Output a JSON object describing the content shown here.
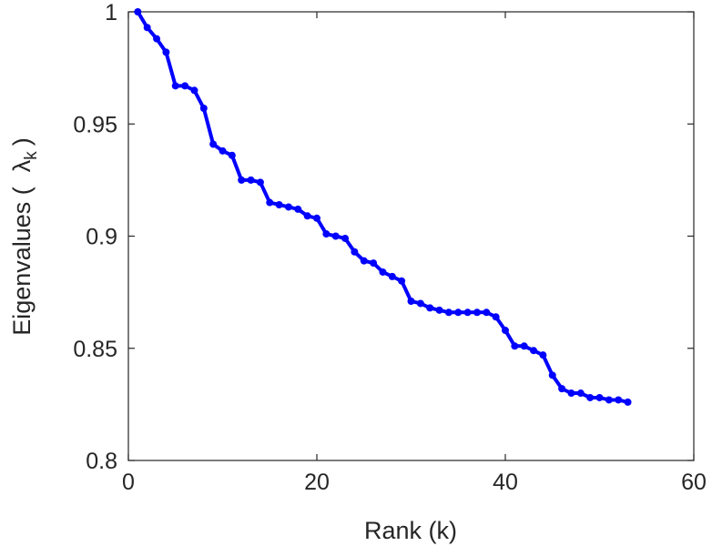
{
  "chart_data": {
    "type": "line",
    "xlabel": "Rank (k)",
    "ylabel": {
      "text": "Eigenvalues (",
      "symbol": "λ",
      "subscript": "k",
      "close": ")"
    },
    "xlim": [
      0,
      60
    ],
    "ylim": [
      0.8,
      1.0
    ],
    "xticks": [
      0,
      20,
      40,
      60
    ],
    "xtick_labels": [
      "0",
      "20",
      "40",
      "60"
    ],
    "yticks": [
      0.8,
      0.85,
      0.9,
      0.95,
      1.0
    ],
    "ytick_labels": [
      "0.8",
      "0.85",
      "0.9",
      "0.95",
      "1"
    ],
    "grid": false,
    "series": [
      {
        "color": "#0000ff",
        "marker": "circle",
        "x": [
          1,
          2,
          3,
          4,
          5,
          6,
          7,
          8,
          9,
          10,
          11,
          12,
          13,
          14,
          15,
          16,
          17,
          18,
          19,
          20,
          21,
          22,
          23,
          24,
          25,
          26,
          27,
          28,
          29,
          30,
          31,
          32,
          33,
          34,
          35,
          36,
          37,
          38,
          39,
          40,
          41,
          42,
          43,
          44,
          45,
          46,
          47,
          48,
          49,
          50,
          51,
          52,
          53
        ],
        "y": [
          1.0,
          0.993,
          0.988,
          0.982,
          0.967,
          0.967,
          0.965,
          0.957,
          0.941,
          0.938,
          0.936,
          0.925,
          0.925,
          0.924,
          0.915,
          0.914,
          0.913,
          0.912,
          0.909,
          0.908,
          0.901,
          0.9,
          0.899,
          0.893,
          0.889,
          0.888,
          0.884,
          0.882,
          0.88,
          0.871,
          0.87,
          0.868,
          0.867,
          0.866,
          0.866,
          0.866,
          0.866,
          0.866,
          0.864,
          0.858,
          0.851,
          0.851,
          0.849,
          0.847,
          0.838,
          0.832,
          0.83,
          0.83,
          0.828,
          0.828,
          0.827,
          0.827,
          0.826
        ]
      }
    ]
  }
}
